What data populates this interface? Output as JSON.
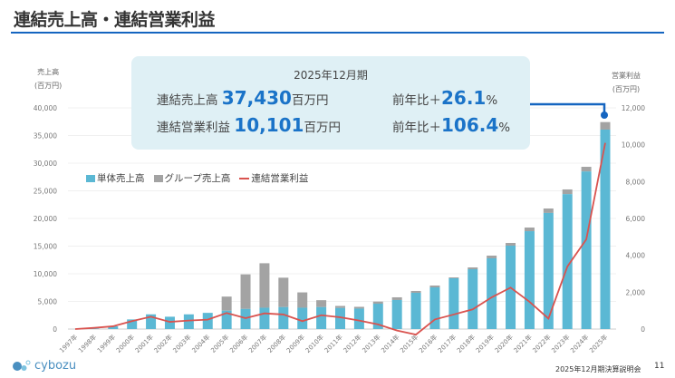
{
  "header": {
    "title": "連結売上高・連結営業利益"
  },
  "callout": {
    "period": "2025年12月期",
    "sales_label": "連結売上高",
    "sales_value": "37,430",
    "sales_unit": "百万円",
    "sales_yoy_label": "前年比＋",
    "sales_yoy_value": "26.1",
    "sales_yoy_unit": "%",
    "op_label": "連結営業利益",
    "op_value": "10,101",
    "op_unit": "百万円",
    "op_yoy_label": "前年比＋",
    "op_yoy_value": "106.4",
    "op_yoy_unit": "%"
  },
  "footer": {
    "logo_text": "cybozu",
    "event": "2025年12月期決算説明会",
    "page": "11"
  },
  "chart_data": {
    "type": "bar+line",
    "left_axis": {
      "title": "売上高",
      "unit": "(百万円)",
      "ylim": [
        0,
        40000
      ],
      "ticks": [
        "0",
        "5,000",
        "10,000",
        "15,000",
        "20,000",
        "25,000",
        "30,000",
        "35,000",
        "40,000"
      ]
    },
    "right_axis": {
      "title": "営業利益",
      "unit": "(百万円)",
      "ylim": [
        0,
        12000
      ],
      "ticks": [
        "0",
        "2,000",
        "4,000",
        "6,000",
        "8,000",
        "10,000",
        "12,000"
      ]
    },
    "grid": true,
    "legend_position": "top-left",
    "categories": [
      "1997年",
      "1998年",
      "1999年",
      "2000年",
      "2001年",
      "2002年",
      "2003年",
      "2004年",
      "2005年",
      "2006年",
      "2007年",
      "2008年",
      "2009年",
      "2010年",
      "2011年",
      "2012年",
      "2013年",
      "2014年",
      "2015年",
      "2016年",
      "2017年",
      "2018年",
      "2019年",
      "2020年",
      "2021年",
      "2022年",
      "2023年",
      "2024年",
      "2025年"
    ],
    "series": [
      {
        "name": "単体売上高",
        "type": "bar",
        "axis": "left",
        "color": "#5bb8d4",
        "values": [
          0,
          100,
          490,
          1740,
          2660,
          2230,
          2660,
          2930,
          3320,
          3640,
          3860,
          3970,
          3860,
          3970,
          3800,
          3700,
          4590,
          5250,
          6560,
          7540,
          9180,
          10820,
          12790,
          15080,
          17700,
          21000,
          24400,
          28500,
          36070
        ]
      },
      {
        "name": "グループ売上高",
        "type": "bar",
        "axis": "left",
        "stacked_total": true,
        "color": "#a3a3a3",
        "values": [
          0,
          100,
          490,
          1740,
          2660,
          2230,
          2660,
          2930,
          5870,
          9890,
          11900,
          9290,
          6630,
          5220,
          4180,
          4020,
          4970,
          5740,
          6890,
          7870,
          9340,
          11150,
          13280,
          15570,
          18360,
          21800,
          25250,
          29340,
          37430
        ]
      },
      {
        "name": "連結営業利益",
        "type": "line",
        "axis": "right",
        "color": "#d9534f",
        "values": [
          0,
          65,
          150,
          430,
          670,
          390,
          460,
          510,
          870,
          590,
          850,
          790,
          430,
          750,
          640,
          460,
          250,
          -80,
          -300,
          520,
          790,
          1070,
          1720,
          2250,
          1480,
          570,
          3390,
          4870,
          10101
        ]
      }
    ]
  }
}
